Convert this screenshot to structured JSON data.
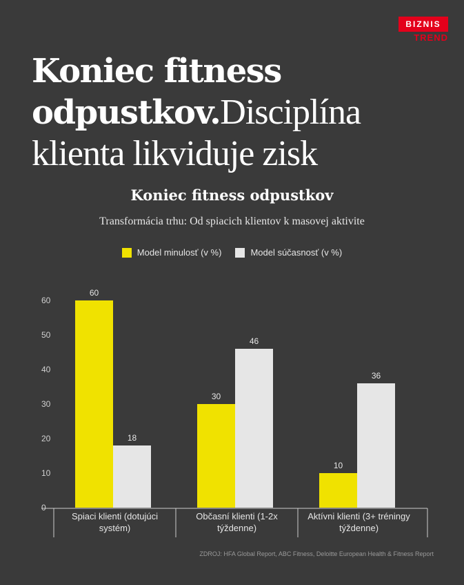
{
  "brand": {
    "top": "BIZNIS",
    "bottom": "TREND"
  },
  "headline": {
    "line1": "Koniec fitness",
    "line2_bold": "odpustkov.",
    "line2_light": "Disciplína",
    "line3": "klienta likviduje zisk"
  },
  "colors": {
    "past": "#f0e200",
    "present": "#e6e6e6",
    "background": "#3a3a3a"
  },
  "chart_data": {
    "type": "bar",
    "title": "Koniec fitness odpustkov",
    "subtitle": "Transformácia trhu: Od spiacich klientov k masovej aktivite",
    "categories": [
      [
        "Spiaci klienti (dotujúci",
        "systém)"
      ],
      [
        "Občasní klienti (1-2x",
        "týždenne)"
      ],
      [
        "Aktívni klienti (3+ tréningy",
        "týždenne)"
      ]
    ],
    "series": [
      {
        "name": "Model minulosť (v %)",
        "values": [
          60,
          30,
          10
        ]
      },
      {
        "name": "Model súčasnosť (v %)",
        "values": [
          18,
          46,
          36
        ]
      }
    ],
    "yticks": [
      "0",
      "10",
      "20",
      "30",
      "40",
      "50",
      "60"
    ],
    "ylim": [
      0,
      60
    ],
    "legend": "top-center",
    "grid": false
  },
  "source": "ZDROJ: HFA Global Report, ABC Fitness, Deloitte European Health & Fitness Report"
}
